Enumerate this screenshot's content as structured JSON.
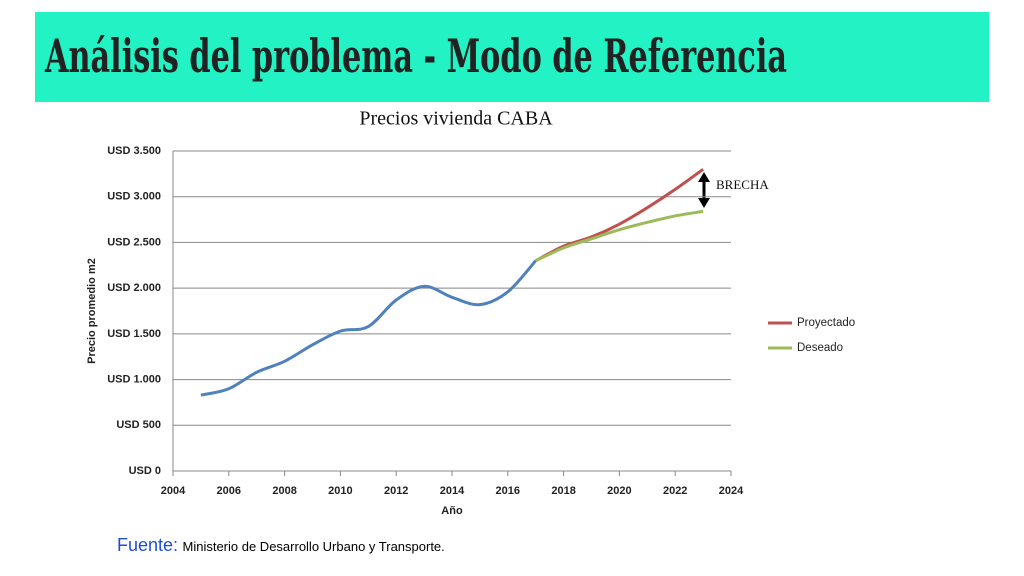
{
  "slide_title": "Análisis del problema - Modo de Referencia",
  "chart_data": {
    "type": "line",
    "title": "Precios vivienda CABA",
    "x_label": "Año",
    "y_label": "Precio promedio m2",
    "x": [
      2005,
      2006,
      2007,
      2008,
      2009,
      2010,
      2011,
      2012,
      2013,
      2014,
      2015,
      2016,
      2017,
      2018,
      2019,
      2020,
      2021,
      2022,
      2023
    ],
    "series": [
      {
        "color": "#4f81bd",
        "values": [
          830,
          900,
          1080,
          1200,
          1380,
          1530,
          1580,
          1870,
          2020,
          1900,
          1820,
          1960,
          2300,
          null,
          null,
          null,
          null,
          null,
          null
        ]
      },
      {
        "name": "Proyectado",
        "color": "#c0504d",
        "values": [
          null,
          null,
          null,
          null,
          null,
          null,
          null,
          null,
          null,
          null,
          null,
          null,
          2300,
          2460,
          2560,
          2700,
          2880,
          3080,
          3300
        ]
      },
      {
        "name": "Deseado",
        "color": "#9bbb59",
        "values": [
          null,
          null,
          null,
          null,
          null,
          null,
          null,
          null,
          null,
          null,
          null,
          null,
          2300,
          2440,
          2540,
          2640,
          2720,
          2790,
          2840
        ]
      }
    ],
    "xlim": [
      2004,
      2024
    ],
    "xticks": [
      2004,
      2006,
      2008,
      2010,
      2012,
      2014,
      2016,
      2018,
      2020,
      2022,
      2024
    ],
    "ylim": [
      0,
      3500
    ],
    "yticks": [
      {
        "value": 0,
        "label": "USD 0"
      },
      {
        "value": 500,
        "label": "USD 500"
      },
      {
        "value": 1000,
        "label": "USD 1.000"
      },
      {
        "value": 1500,
        "label": "USD 1.500"
      },
      {
        "value": 2000,
        "label": "USD 2.000"
      },
      {
        "value": 2500,
        "label": "USD 2.500"
      },
      {
        "value": 3000,
        "label": "USD 3.000"
      },
      {
        "value": 3500,
        "label": "USD 3.500"
      }
    ],
    "grid": true,
    "legend": "right",
    "annotation": "BRECHA"
  },
  "source": {
    "label": "Fuente:",
    "text": "Ministerio de Desarrollo Urbano y Transporte."
  }
}
